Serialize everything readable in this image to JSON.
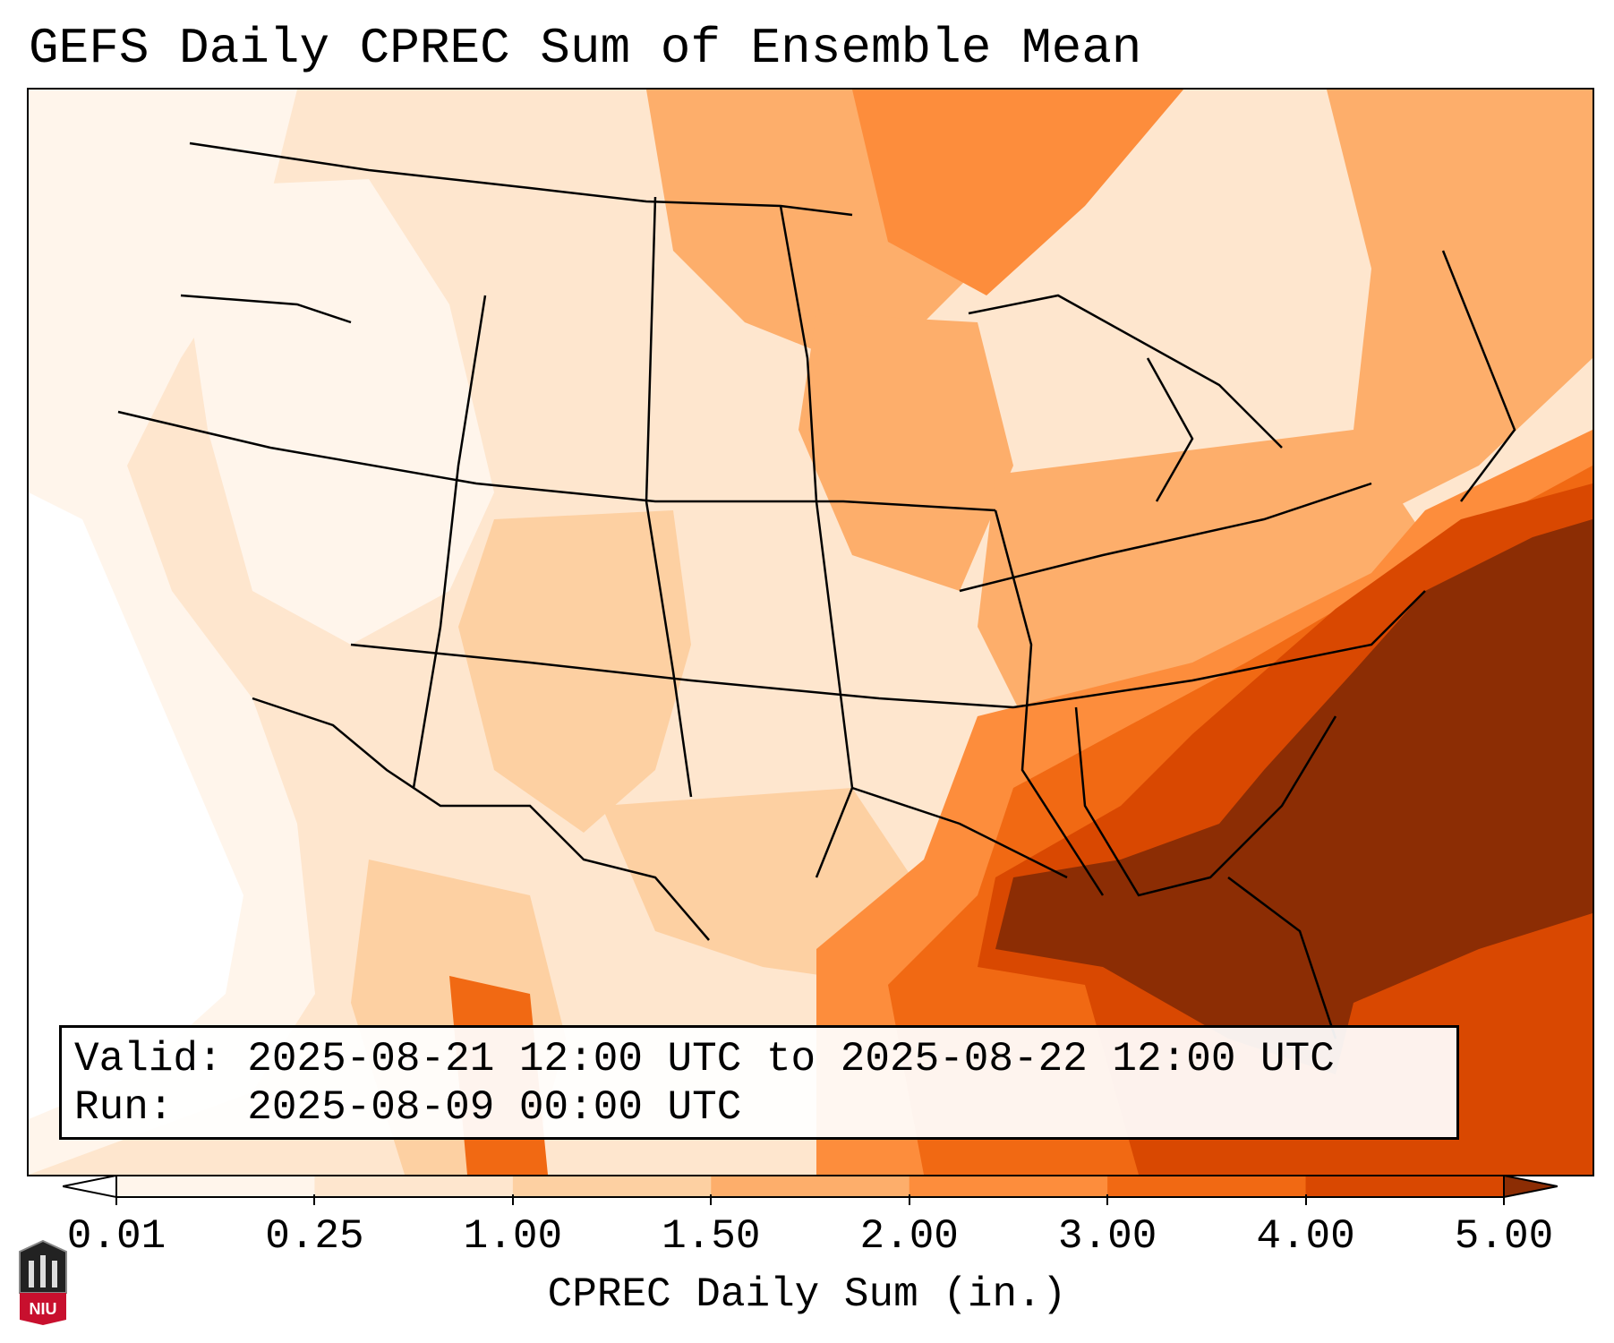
{
  "title": "GEFS Daily CPREC Sum of Ensemble Mean",
  "map": {
    "region": "Continental United States",
    "basemap": "state-boundaries"
  },
  "info": {
    "valid_label": "Valid:",
    "valid_text": "2025-08-21 12:00 UTC to 2025-08-22 12:00 UTC",
    "run_label": "Run:",
    "run_text": "2025-08-09 00:00 UTC"
  },
  "colorbar": {
    "label": "CPREC Daily Sum (in.)",
    "ticks": [
      "0.01",
      "0.25",
      "1.00",
      "1.50",
      "2.00",
      "3.00",
      "4.00",
      "5.00"
    ],
    "bins": [
      {
        "min": 0.01,
        "max": 0.25,
        "color": "#fff5eb"
      },
      {
        "min": 0.25,
        "max": 1.0,
        "color": "#fee6ce"
      },
      {
        "min": 1.0,
        "max": 1.5,
        "color": "#fdd0a2"
      },
      {
        "min": 1.5,
        "max": 2.0,
        "color": "#fdae6b"
      },
      {
        "min": 2.0,
        "max": 3.0,
        "color": "#fd8d3c"
      },
      {
        "min": 3.0,
        "max": 4.0,
        "color": "#f16913"
      },
      {
        "min": 4.0,
        "max": 5.0,
        "color": "#d94801"
      }
    ],
    "under_color": "#ffffff",
    "over_color": "#8c2d04"
  },
  "logo": {
    "text": "NIU",
    "color": "#c8102e"
  }
}
